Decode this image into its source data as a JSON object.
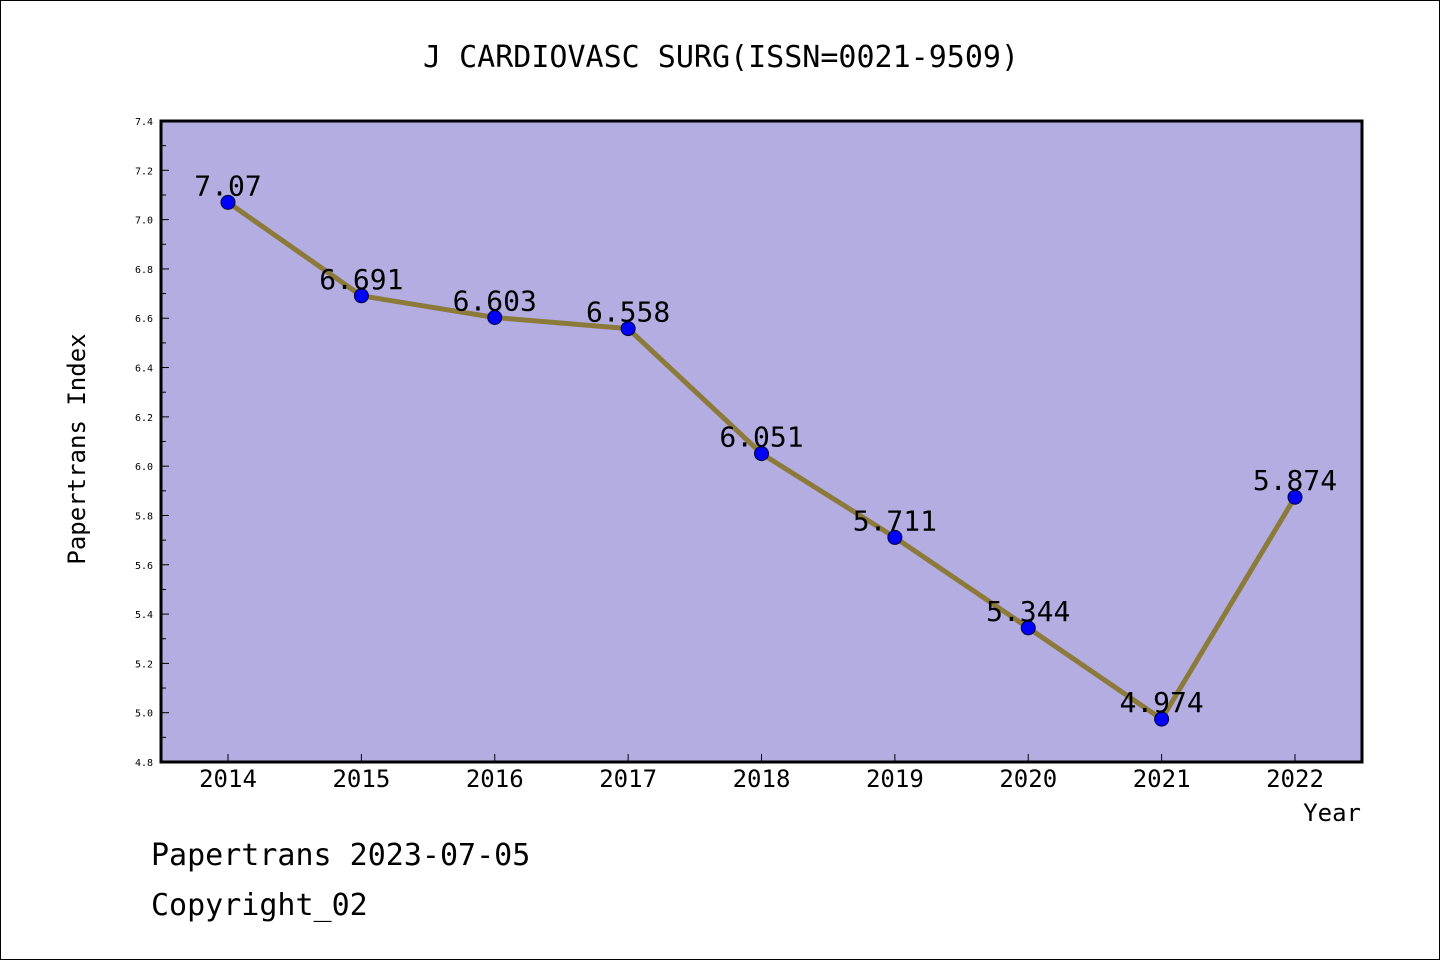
{
  "chart_data": {
    "type": "line",
    "title": "J CARDIOVASC SURG(ISSN=0021-9509)",
    "xlabel": "Year",
    "ylabel": "Papertrans Index",
    "categories": [
      "2014",
      "2015",
      "2016",
      "2017",
      "2018",
      "2019",
      "2020",
      "2021",
      "2022"
    ],
    "values": [
      7.07,
      6.691,
      6.603,
      6.558,
      6.051,
      5.711,
      5.344,
      4.974,
      5.874
    ],
    "data_labels": [
      "7.07",
      "6.691",
      "6.603",
      "6.558",
      "6.051",
      "5.711",
      "5.344",
      "4.974",
      "5.874"
    ],
    "ylim": [
      4.8,
      7.4
    ],
    "yticks": [
      "4.8",
      "5.0",
      "5.2",
      "5.4",
      "5.6",
      "5.8",
      "6.0",
      "6.2",
      "6.4",
      "6.6",
      "6.8",
      "7.0",
      "7.2",
      "7.4"
    ],
    "grid": false,
    "colors": {
      "plot_background": "#b4ade2",
      "line": "#8b7a3a",
      "marker": "#0000ff"
    }
  },
  "footer": {
    "line1": "Papertrans 2023-07-05",
    "line2": "Copyright_02"
  }
}
